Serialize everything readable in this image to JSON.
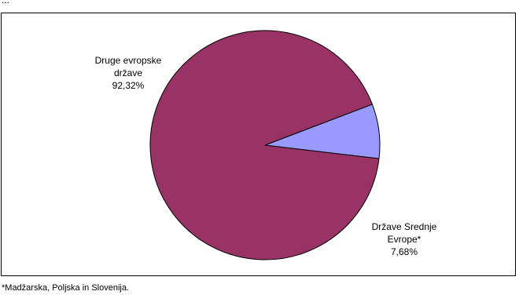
{
  "chart_data": {
    "type": "pie",
    "title": "...",
    "slices": [
      {
        "label_lines": [
          "Druge evropske",
          "države"
        ],
        "value": 92.32,
        "value_label": "92,32%",
        "color": "#993366"
      },
      {
        "label_lines": [
          "Države Srednje",
          "Evrope*"
        ],
        "value": 7.68,
        "value_label": "7,68%",
        "color": "#9999ff"
      }
    ]
  },
  "footnote": "*Madžarska, Poljska in Slovenija."
}
